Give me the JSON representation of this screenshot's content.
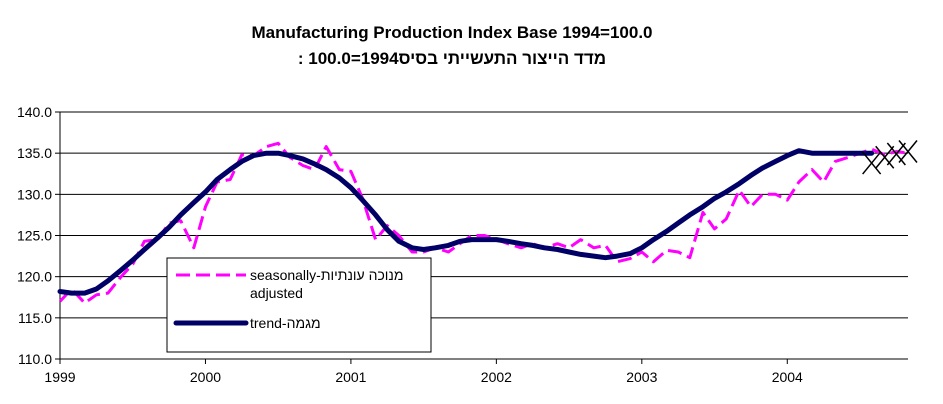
{
  "chart_data": {
    "type": "line",
    "title": "Manufacturing Production Index Base 1994=100.0",
    "subtitle": "מדד הייצור התעשייתי בסיס1994=100.0 :",
    "xlabel": "",
    "ylabel": "",
    "ylim": [
      110,
      140
    ],
    "y_ticks": [
      "110.0",
      "115.0",
      "120.0",
      "125.0",
      "130.0",
      "135.0",
      "140.0"
    ],
    "y_tick_values": [
      110,
      115,
      120,
      125,
      130,
      135,
      140
    ],
    "x_ticks": [
      "1999",
      "2000",
      "2001",
      "2002",
      "2003",
      "2004"
    ],
    "x_tick_values": [
      1999,
      2000,
      2001,
      2002,
      2003,
      2004
    ],
    "xlim": [
      1999,
      2004.83
    ],
    "grid": true,
    "legend_placement": "bottom-left",
    "legend": [
      {
        "label": "seasonally-מנוכה עונתיות",
        "label_line2": "adjusted",
        "series_index": 0
      },
      {
        "label": "trend-מגמה",
        "series_index": 1
      }
    ],
    "series": [
      {
        "name": "seasonally-adjusted",
        "color": "#FF00FF",
        "style": "dashed",
        "x": [
          1999.0,
          1999.08,
          1999.17,
          1999.25,
          1999.33,
          1999.42,
          1999.5,
          1999.58,
          1999.67,
          1999.75,
          1999.83,
          1999.92,
          2000.0,
          2000.08,
          2000.17,
          2000.25,
          2000.33,
          2000.42,
          2000.5,
          2000.58,
          2000.67,
          2000.75,
          2000.83,
          2000.92,
          2001.0,
          2001.08,
          2001.17,
          2001.25,
          2001.33,
          2001.42,
          2001.5,
          2001.58,
          2001.67,
          2001.75,
          2001.83,
          2001.92,
          2002.0,
          2002.08,
          2002.17,
          2002.25,
          2002.33,
          2002.42,
          2002.5,
          2002.58,
          2002.67,
          2002.75,
          2002.83,
          2002.92,
          2003.0,
          2003.08,
          2003.17,
          2003.25,
          2003.33,
          2003.42,
          2003.5,
          2003.58,
          2003.67,
          2003.75,
          2003.83,
          2003.92,
          2004.0,
          2004.08,
          2004.17,
          2004.25,
          2004.33,
          2004.42,
          2004.5,
          2004.58,
          2004.67,
          2004.75,
          2004.83
        ],
        "values": [
          117.0,
          118.5,
          116.8,
          117.8,
          118.0,
          120.0,
          121.5,
          124.3,
          124.5,
          126.5,
          126.8,
          123.5,
          128.5,
          131.5,
          131.8,
          134.8,
          134.7,
          135.8,
          136.2,
          134.5,
          133.5,
          133.0,
          135.8,
          133.0,
          132.8,
          129.5,
          124.5,
          126.2,
          125.0,
          123.0,
          123.0,
          123.5,
          123.0,
          124.0,
          125.0,
          125.0,
          124.5,
          124.0,
          123.5,
          124.0,
          123.5,
          124.0,
          123.5,
          124.5,
          123.5,
          123.8,
          121.8,
          122.2,
          123.0,
          121.8,
          123.2,
          123.0,
          122.3,
          127.8,
          125.8,
          127.0,
          130.5,
          128.5,
          130.0,
          130.0,
          129.3,
          131.5,
          133.0,
          131.5,
          134.0,
          134.5,
          135.0,
          135.5,
          134.8,
          135.2,
          135.0
        ]
      },
      {
        "name": "trend",
        "color": "#000066",
        "style": "solid",
        "x": [
          1999.0,
          1999.08,
          1999.17,
          1999.25,
          1999.33,
          1999.42,
          1999.5,
          1999.58,
          1999.67,
          1999.75,
          1999.83,
          1999.92,
          2000.0,
          2000.08,
          2000.17,
          2000.25,
          2000.33,
          2000.42,
          2000.5,
          2000.58,
          2000.67,
          2000.75,
          2000.83,
          2000.92,
          2001.0,
          2001.08,
          2001.17,
          2001.25,
          2001.33,
          2001.42,
          2001.5,
          2001.58,
          2001.67,
          2001.75,
          2001.83,
          2001.92,
          2002.0,
          2002.08,
          2002.17,
          2002.25,
          2002.33,
          2002.42,
          2002.5,
          2002.58,
          2002.67,
          2002.75,
          2002.83,
          2002.92,
          2003.0,
          2003.08,
          2003.17,
          2003.25,
          2003.33,
          2003.42,
          2003.5,
          2003.58,
          2003.67,
          2003.75,
          2003.83,
          2003.92,
          2004.0,
          2004.08,
          2004.17,
          2004.25,
          2004.33,
          2004.42,
          2004.5,
          2004.58
        ],
        "values": [
          118.2,
          118.0,
          118.0,
          118.5,
          119.5,
          120.8,
          122.0,
          123.3,
          124.7,
          126.0,
          127.5,
          129.0,
          130.3,
          131.8,
          133.0,
          134.0,
          134.7,
          135.0,
          135.0,
          134.7,
          134.3,
          133.7,
          133.0,
          132.0,
          130.8,
          129.3,
          127.5,
          125.7,
          124.3,
          123.5,
          123.3,
          123.5,
          123.8,
          124.3,
          124.5,
          124.5,
          124.5,
          124.3,
          124.0,
          123.8,
          123.5,
          123.3,
          123.0,
          122.7,
          122.5,
          122.3,
          122.5,
          122.8,
          123.5,
          124.5,
          125.5,
          126.5,
          127.5,
          128.5,
          129.5,
          130.3,
          131.3,
          132.3,
          133.2,
          134.0,
          134.7,
          135.3,
          135.0,
          135.0,
          135.0,
          135.0,
          135.0,
          135.0
        ]
      }
    ],
    "projection_markers_x": [
      2004.58,
      2004.67,
      2004.75,
      2004.83
    ],
    "projection_markers_values": [
      133.8,
      134.5,
      134.9,
      135.2
    ]
  }
}
